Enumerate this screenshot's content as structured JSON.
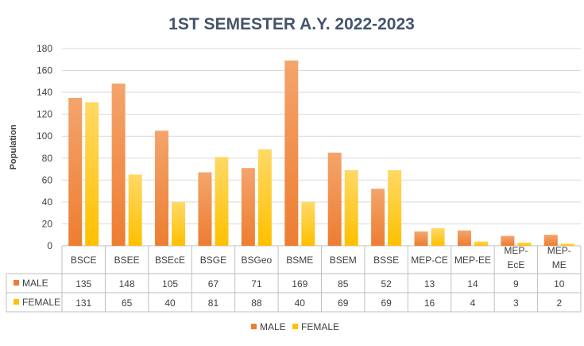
{
  "chart_data": {
    "type": "bar",
    "title": "1ST SEMESTER A.Y. 2022-2023",
    "ylabel": "Population",
    "xlabel": "",
    "ylim": [
      0,
      180
    ],
    "yticks": [
      0,
      20,
      40,
      60,
      80,
      100,
      120,
      140,
      160,
      180
    ],
    "grid": true,
    "legend_position": "bottom",
    "data_table": true,
    "categories": [
      [
        "BSCE"
      ],
      [
        "BSEE"
      ],
      [
        "BSEcE"
      ],
      [
        "BSGE"
      ],
      [
        "BSGeo"
      ],
      [
        "BSME"
      ],
      [
        "BSEM"
      ],
      [
        "BSSE"
      ],
      [
        "MEP-CE"
      ],
      [
        "MEP-EE"
      ],
      [
        "MEP-",
        "EcE"
      ],
      [
        "MEP-",
        "ME"
      ]
    ],
    "series": [
      {
        "name": "MALE",
        "color": "#ED7D31",
        "color_light": "#F4A46C",
        "values": [
          135,
          148,
          105,
          67,
          71,
          169,
          85,
          52,
          13,
          14,
          9,
          10
        ]
      },
      {
        "name": "FEMALE",
        "color": "#FFC000",
        "color_light": "#FFD966",
        "values": [
          131,
          65,
          40,
          81,
          88,
          40,
          69,
          69,
          16,
          4,
          3,
          2
        ]
      }
    ]
  },
  "colors": {
    "title": "#44546A",
    "axis_text": "#404040",
    "gridline": "#D9D9D9",
    "table_border": "#BFBFBF"
  }
}
